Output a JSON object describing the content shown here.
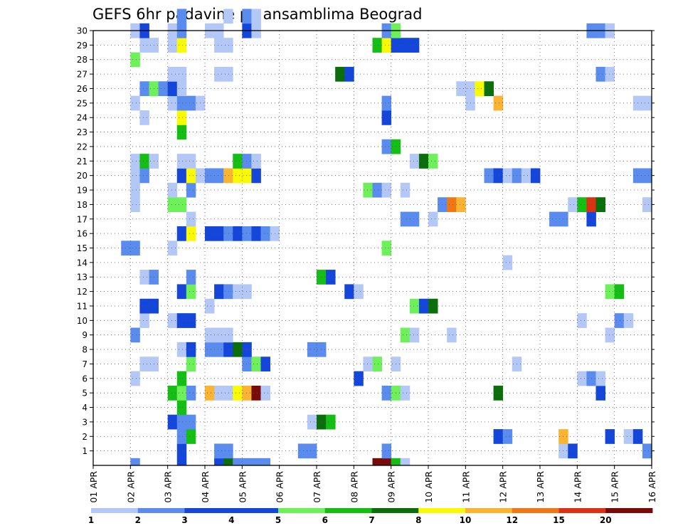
{
  "chart_data": {
    "type": "heatmap",
    "title": "GEFS 6hr padavine po ansamblima Beograd",
    "y_ticks": [
      1,
      2,
      3,
      4,
      5,
      6,
      7,
      8,
      9,
      10,
      11,
      12,
      13,
      14,
      15,
      16,
      17,
      18,
      19,
      20,
      21,
      22,
      23,
      24,
      25,
      26,
      27,
      28,
      29,
      30
    ],
    "y_range": [
      0,
      30
    ],
    "x_range": [
      0,
      60
    ],
    "x_ticks": [
      {
        "x": 0,
        "label": "01 APR"
      },
      {
        "x": 4,
        "label": "02 APR"
      },
      {
        "x": 8,
        "label": "03 APR"
      },
      {
        "x": 12,
        "label": "04 APR"
      },
      {
        "x": 16,
        "label": "05 APR"
      },
      {
        "x": 20,
        "label": "06 APR"
      },
      {
        "x": 24,
        "label": "07 APR"
      },
      {
        "x": 28,
        "label": "08 APR"
      },
      {
        "x": 32,
        "label": "09 APR"
      },
      {
        "x": 36,
        "label": "10 APR"
      },
      {
        "x": 40,
        "label": "11 APR"
      },
      {
        "x": 44,
        "label": "12 APR"
      },
      {
        "x": 48,
        "label": "13 APR"
      },
      {
        "x": 52,
        "label": "14 APR"
      },
      {
        "x": 56,
        "label": "15 APR"
      },
      {
        "x": 60,
        "label": "16 APR"
      }
    ],
    "grid": true,
    "colorbar": {
      "position": "bottom",
      "labels": [
        "1",
        "2",
        "3",
        "4",
        "5",
        "6",
        "7",
        "8",
        "10",
        "12",
        "15",
        "20"
      ],
      "colors": [
        "#b4c8f8",
        "#5a8cf0",
        "#1446dc",
        "#1446dc",
        "#6ef05a",
        "#14be14",
        "#0a6e0a",
        "#fafa00",
        "#fab432",
        "#f07814",
        "#dc3214",
        "#780a0a"
      ]
    },
    "palette": [
      "#b4c8f8",
      "#5a8cf0",
      "#1446dc",
      "#6ef05a",
      "#14be14",
      "#0a6e0a",
      "#fafa00",
      "#fab432",
      "#f07814",
      "#dc3214",
      "#780a0a"
    ],
    "cells": [
      [
        4,
        0,
        1
      ],
      [
        9,
        0,
        2
      ],
      [
        13,
        0,
        2
      ],
      [
        14,
        0,
        5
      ],
      [
        15,
        0,
        1
      ],
      [
        16,
        0,
        1
      ],
      [
        17,
        0,
        1
      ],
      [
        18,
        0,
        1
      ],
      [
        30,
        0,
        10
      ],
      [
        31,
        0,
        10
      ],
      [
        32,
        0,
        4
      ],
      [
        33,
        0,
        0
      ],
      [
        9,
        1,
        2
      ],
      [
        13,
        1,
        1
      ],
      [
        14,
        1,
        1
      ],
      [
        22,
        1,
        1
      ],
      [
        23,
        1,
        1
      ],
      [
        31,
        1,
        1
      ],
      [
        50,
        1,
        0
      ],
      [
        51,
        1,
        2
      ],
      [
        59,
        1,
        1
      ],
      [
        9,
        2,
        1
      ],
      [
        10,
        2,
        4
      ],
      [
        43,
        2,
        2
      ],
      [
        44,
        2,
        1
      ],
      [
        50,
        2,
        7
      ],
      [
        55,
        2,
        2
      ],
      [
        57,
        2,
        0
      ],
      [
        58,
        2,
        2
      ],
      [
        8,
        3,
        2
      ],
      [
        9,
        3,
        1
      ],
      [
        10,
        3,
        1
      ],
      [
        23,
        3,
        0
      ],
      [
        24,
        3,
        5
      ],
      [
        25,
        3,
        4
      ],
      [
        9,
        4,
        4
      ],
      [
        8,
        5,
        4
      ],
      [
        9,
        5,
        3
      ],
      [
        10,
        5,
        1
      ],
      [
        12,
        5,
        7
      ],
      [
        13,
        5,
        0
      ],
      [
        14,
        5,
        0
      ],
      [
        15,
        5,
        6
      ],
      [
        16,
        5,
        7
      ],
      [
        17,
        5,
        10
      ],
      [
        18,
        5,
        0
      ],
      [
        31,
        5,
        1
      ],
      [
        32,
        5,
        3
      ],
      [
        33,
        5,
        0
      ],
      [
        43,
        5,
        5
      ],
      [
        54,
        5,
        2
      ],
      [
        4,
        6,
        0
      ],
      [
        9,
        6,
        4
      ],
      [
        28,
        6,
        2
      ],
      [
        52,
        6,
        0
      ],
      [
        53,
        6,
        1
      ],
      [
        54,
        6,
        0
      ],
      [
        5,
        7,
        0
      ],
      [
        6,
        7,
        0
      ],
      [
        10,
        7,
        3
      ],
      [
        16,
        7,
        1
      ],
      [
        17,
        7,
        3
      ],
      [
        18,
        7,
        2
      ],
      [
        29,
        7,
        0
      ],
      [
        30,
        7,
        3
      ],
      [
        32,
        7,
        0
      ],
      [
        45,
        7,
        0
      ],
      [
        9,
        8,
        0
      ],
      [
        10,
        8,
        2
      ],
      [
        12,
        8,
        1
      ],
      [
        13,
        8,
        1
      ],
      [
        14,
        8,
        2
      ],
      [
        15,
        8,
        5
      ],
      [
        16,
        8,
        2
      ],
      [
        23,
        8,
        1
      ],
      [
        24,
        8,
        1
      ],
      [
        4,
        9,
        1
      ],
      [
        12,
        9,
        0
      ],
      [
        13,
        9,
        0
      ],
      [
        14,
        9,
        0
      ],
      [
        33,
        9,
        3
      ],
      [
        34,
        9,
        0
      ],
      [
        38,
        9,
        0
      ],
      [
        55,
        9,
        0
      ],
      [
        5,
        10,
        0
      ],
      [
        8,
        10,
        0
      ],
      [
        9,
        10,
        2
      ],
      [
        10,
        10,
        2
      ],
      [
        52,
        10,
        0
      ],
      [
        56,
        10,
        1
      ],
      [
        57,
        10,
        0
      ],
      [
        5,
        11,
        2
      ],
      [
        6,
        11,
        2
      ],
      [
        12,
        11,
        0
      ],
      [
        34,
        11,
        3
      ],
      [
        35,
        11,
        2
      ],
      [
        36,
        11,
        5
      ],
      [
        9,
        12,
        2
      ],
      [
        10,
        12,
        3
      ],
      [
        13,
        12,
        2
      ],
      [
        14,
        12,
        1
      ],
      [
        15,
        12,
        0
      ],
      [
        16,
        12,
        0
      ],
      [
        27,
        12,
        2
      ],
      [
        28,
        12,
        0
      ],
      [
        55,
        12,
        3
      ],
      [
        56,
        12,
        4
      ],
      [
        5,
        13,
        0
      ],
      [
        6,
        13,
        1
      ],
      [
        10,
        13,
        1
      ],
      [
        24,
        13,
        4
      ],
      [
        25,
        13,
        2
      ],
      [
        44,
        14,
        0
      ],
      [
        3,
        15,
        1
      ],
      [
        4,
        15,
        1
      ],
      [
        8,
        15,
        0
      ],
      [
        31,
        15,
        3
      ],
      [
        9,
        16,
        2
      ],
      [
        10,
        16,
        6
      ],
      [
        12,
        16,
        2
      ],
      [
        13,
        16,
        2
      ],
      [
        14,
        16,
        1
      ],
      [
        15,
        16,
        2
      ],
      [
        16,
        16,
        1
      ],
      [
        17,
        16,
        2
      ],
      [
        18,
        16,
        1
      ],
      [
        19,
        16,
        0
      ],
      [
        10,
        17,
        0
      ],
      [
        33,
        17,
        1
      ],
      [
        34,
        17,
        1
      ],
      [
        36,
        17,
        0
      ],
      [
        49,
        17,
        1
      ],
      [
        50,
        17,
        1
      ],
      [
        53,
        17,
        2
      ],
      [
        4,
        18,
        0
      ],
      [
        8,
        18,
        3
      ],
      [
        9,
        18,
        3
      ],
      [
        37,
        18,
        1
      ],
      [
        38,
        18,
        8
      ],
      [
        39,
        18,
        7
      ],
      [
        51,
        18,
        0
      ],
      [
        52,
        18,
        4
      ],
      [
        53,
        18,
        9
      ],
      [
        54,
        18,
        5
      ],
      [
        59,
        18,
        0
      ],
      [
        4,
        19,
        0
      ],
      [
        8,
        19,
        0
      ],
      [
        10,
        19,
        1
      ],
      [
        29,
        19,
        3
      ],
      [
        30,
        19,
        1
      ],
      [
        31,
        19,
        0
      ],
      [
        33,
        19,
        0
      ],
      [
        4,
        20,
        0
      ],
      [
        5,
        20,
        1
      ],
      [
        9,
        20,
        2
      ],
      [
        10,
        20,
        6
      ],
      [
        11,
        20,
        0
      ],
      [
        12,
        20,
        1
      ],
      [
        13,
        20,
        1
      ],
      [
        14,
        20,
        7
      ],
      [
        15,
        20,
        6
      ],
      [
        16,
        20,
        6
      ],
      [
        17,
        20,
        2
      ],
      [
        42,
        20,
        1
      ],
      [
        43,
        20,
        2
      ],
      [
        44,
        20,
        0
      ],
      [
        45,
        20,
        1
      ],
      [
        46,
        20,
        0
      ],
      [
        47,
        20,
        2
      ],
      [
        58,
        20,
        1
      ],
      [
        59,
        20,
        1
      ],
      [
        4,
        21,
        0
      ],
      [
        5,
        21,
        4
      ],
      [
        6,
        21,
        0
      ],
      [
        9,
        21,
        0
      ],
      [
        10,
        21,
        0
      ],
      [
        15,
        21,
        4
      ],
      [
        16,
        21,
        1
      ],
      [
        17,
        21,
        0
      ],
      [
        34,
        21,
        0
      ],
      [
        35,
        21,
        5
      ],
      [
        36,
        21,
        3
      ],
      [
        31,
        22,
        1
      ],
      [
        32,
        22,
        4
      ],
      [
        9,
        23,
        4
      ],
      [
        5,
        24,
        0
      ],
      [
        9,
        24,
        6
      ],
      [
        31,
        24,
        2
      ],
      [
        4,
        25,
        0
      ],
      [
        8,
        25,
        0
      ],
      [
        9,
        25,
        1
      ],
      [
        10,
        25,
        1
      ],
      [
        11,
        25,
        0
      ],
      [
        31,
        25,
        1
      ],
      [
        40,
        25,
        0
      ],
      [
        43,
        25,
        7
      ],
      [
        58,
        25,
        0
      ],
      [
        59,
        25,
        0
      ],
      [
        5,
        26,
        1
      ],
      [
        6,
        26,
        3
      ],
      [
        7,
        26,
        1
      ],
      [
        8,
        26,
        2
      ],
      [
        9,
        26,
        0
      ],
      [
        39,
        26,
        0
      ],
      [
        40,
        26,
        0
      ],
      [
        41,
        26,
        6
      ],
      [
        42,
        26,
        5
      ],
      [
        8,
        27,
        0
      ],
      [
        9,
        27,
        0
      ],
      [
        13,
        27,
        0
      ],
      [
        14,
        27,
        0
      ],
      [
        26,
        27,
        5
      ],
      [
        27,
        27,
        2
      ],
      [
        54,
        27,
        1
      ],
      [
        55,
        27,
        0
      ],
      [
        4,
        28,
        3
      ],
      [
        5,
        29,
        0
      ],
      [
        6,
        29,
        0
      ],
      [
        8,
        29,
        0
      ],
      [
        9,
        29,
        6
      ],
      [
        13,
        29,
        0
      ],
      [
        14,
        29,
        0
      ],
      [
        30,
        29,
        4
      ],
      [
        31,
        29,
        6
      ],
      [
        32,
        29,
        2
      ],
      [
        33,
        29,
        2
      ],
      [
        34,
        29,
        2
      ],
      [
        4,
        30,
        0
      ],
      [
        5,
        30,
        2
      ],
      [
        8,
        30,
        0
      ],
      [
        9,
        30,
        1
      ],
      [
        12,
        30,
        0
      ],
      [
        13,
        30,
        0
      ],
      [
        16,
        30,
        2
      ],
      [
        17,
        30,
        0
      ],
      [
        31,
        30,
        1
      ],
      [
        32,
        30,
        3
      ],
      [
        53,
        30,
        1
      ],
      [
        54,
        30,
        1
      ],
      [
        55,
        30,
        0
      ],
      [
        9,
        31,
        1
      ],
      [
        14,
        31,
        0
      ],
      [
        16,
        31,
        1
      ],
      [
        17,
        31,
        0
      ]
    ]
  }
}
